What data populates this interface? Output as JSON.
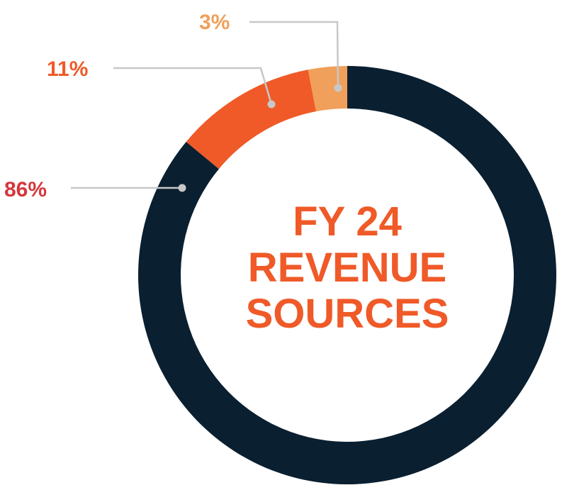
{
  "chart_data": {
    "type": "pie",
    "donut": true,
    "center_title": [
      "FY 24",
      "REVENUE",
      "SOURCES"
    ],
    "slices": [
      {
        "label": "86%",
        "value": 86,
        "color": "#0a1f30",
        "label_color": "#d6363b"
      },
      {
        "label": "11%",
        "value": 11,
        "color": "#ef5a28",
        "label_color": "#ef5a28"
      },
      {
        "label": "3%",
        "value": 3,
        "color": "#f0a05a",
        "label_color": "#f0a05a"
      }
    ]
  },
  "colors": {
    "title": "#ef5a28",
    "leader_line": "#c8c8c8",
    "background": "#ffffff"
  }
}
